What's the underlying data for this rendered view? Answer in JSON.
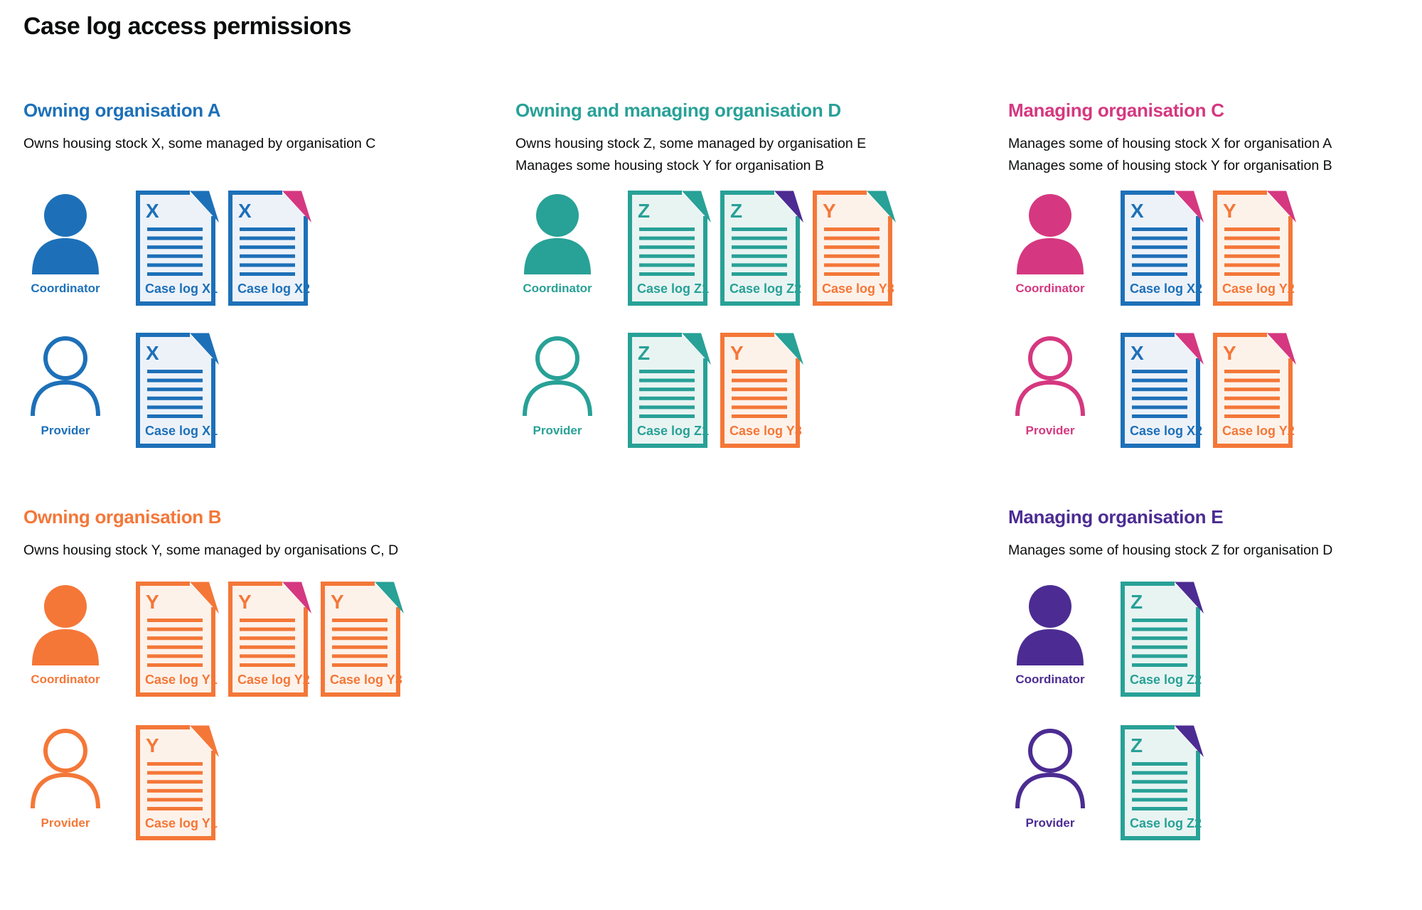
{
  "title": "Case log access permissions",
  "colors": {
    "blue": "#1d70b8",
    "teal": "#28a197",
    "orange": "#f47738",
    "pink": "#d53880",
    "purple": "#4c2c92",
    "text": "#0b0c0c",
    "blue_fill": "#edf2f9",
    "teal_fill": "#e8f4f2",
    "orange_fill": "#fdf2ea"
  },
  "roles": {
    "coordinator": "Coordinator",
    "provider": "Provider"
  },
  "organisations": [
    {
      "id": "A",
      "slot": "top",
      "color": "blue",
      "title": "Owning organisation A",
      "description": [
        "Owns housing stock X, some managed by organisation C"
      ],
      "rows": [
        {
          "role": "coordinator",
          "docs": [
            {
              "letter": "X",
              "label": "Case log X1",
              "doc_color": "blue",
              "fold_color": "blue"
            },
            {
              "letter": "X",
              "label": "Case log X2",
              "doc_color": "blue",
              "fold_color": "pink"
            }
          ]
        },
        {
          "role": "provider",
          "docs": [
            {
              "letter": "X",
              "label": "Case log X1",
              "doc_color": "blue",
              "fold_color": "blue"
            }
          ]
        }
      ]
    },
    {
      "id": "D",
      "slot": "top",
      "color": "teal",
      "title": "Owning and managing organisation D",
      "description": [
        "Owns housing stock Z, some managed by organisation E",
        "Manages some housing stock Y for organisation B"
      ],
      "rows": [
        {
          "role": "coordinator",
          "docs": [
            {
              "letter": "Z",
              "label": "Case log Z1",
              "doc_color": "teal",
              "fold_color": "teal"
            },
            {
              "letter": "Z",
              "label": "Case log Z2",
              "doc_color": "teal",
              "fold_color": "purple"
            },
            {
              "letter": "Y",
              "label": "Case log Y3",
              "doc_color": "orange",
              "fold_color": "teal"
            }
          ]
        },
        {
          "role": "provider",
          "docs": [
            {
              "letter": "Z",
              "label": "Case log Z1",
              "doc_color": "teal",
              "fold_color": "teal"
            },
            {
              "letter": "Y",
              "label": "Case log Y3",
              "doc_color": "orange",
              "fold_color": "teal"
            }
          ]
        }
      ]
    },
    {
      "id": "C",
      "slot": "top",
      "color": "pink",
      "title": "Managing organisation C",
      "description": [
        "Manages some of housing stock X for organisation A",
        "Manages some of housing stock Y for organisation B"
      ],
      "rows": [
        {
          "role": "coordinator",
          "docs": [
            {
              "letter": "X",
              "label": "Case log X2",
              "doc_color": "blue",
              "fold_color": "pink"
            },
            {
              "letter": "Y",
              "label": "Case log Y2",
              "doc_color": "orange",
              "fold_color": "pink"
            }
          ]
        },
        {
          "role": "provider",
          "docs": [
            {
              "letter": "X",
              "label": "Case log X2",
              "doc_color": "blue",
              "fold_color": "pink"
            },
            {
              "letter": "Y",
              "label": "Case log Y2",
              "doc_color": "orange",
              "fold_color": "pink"
            }
          ]
        }
      ]
    },
    {
      "id": "B",
      "slot": "bottom",
      "color": "orange",
      "title": "Owning organisation B",
      "description": [
        "Owns housing stock Y, some managed by organisations C, D"
      ],
      "rows": [
        {
          "role": "coordinator",
          "docs": [
            {
              "letter": "Y",
              "label": "Case log Y1",
              "doc_color": "orange",
              "fold_color": "orange"
            },
            {
              "letter": "Y",
              "label": "Case log Y2",
              "doc_color": "orange",
              "fold_color": "pink"
            },
            {
              "letter": "Y",
              "label": "Case log Y3",
              "doc_color": "orange",
              "fold_color": "teal"
            }
          ]
        },
        {
          "role": "provider",
          "docs": [
            {
              "letter": "Y",
              "label": "Case log Y1",
              "doc_color": "orange",
              "fold_color": "orange"
            }
          ]
        }
      ]
    },
    {
      "id": "E",
      "slot": "bottom",
      "color": "purple",
      "title": "Managing organisation E",
      "description": [
        "Manages some of housing stock Z for organisation D"
      ],
      "rows": [
        {
          "role": "coordinator",
          "docs": [
            {
              "letter": "Z",
              "label": "Case log Z2",
              "doc_color": "teal",
              "fold_color": "purple"
            }
          ]
        },
        {
          "role": "provider",
          "docs": [
            {
              "letter": "Z",
              "label": "Case log Z2",
              "doc_color": "teal",
              "fold_color": "purple"
            }
          ]
        }
      ]
    }
  ]
}
